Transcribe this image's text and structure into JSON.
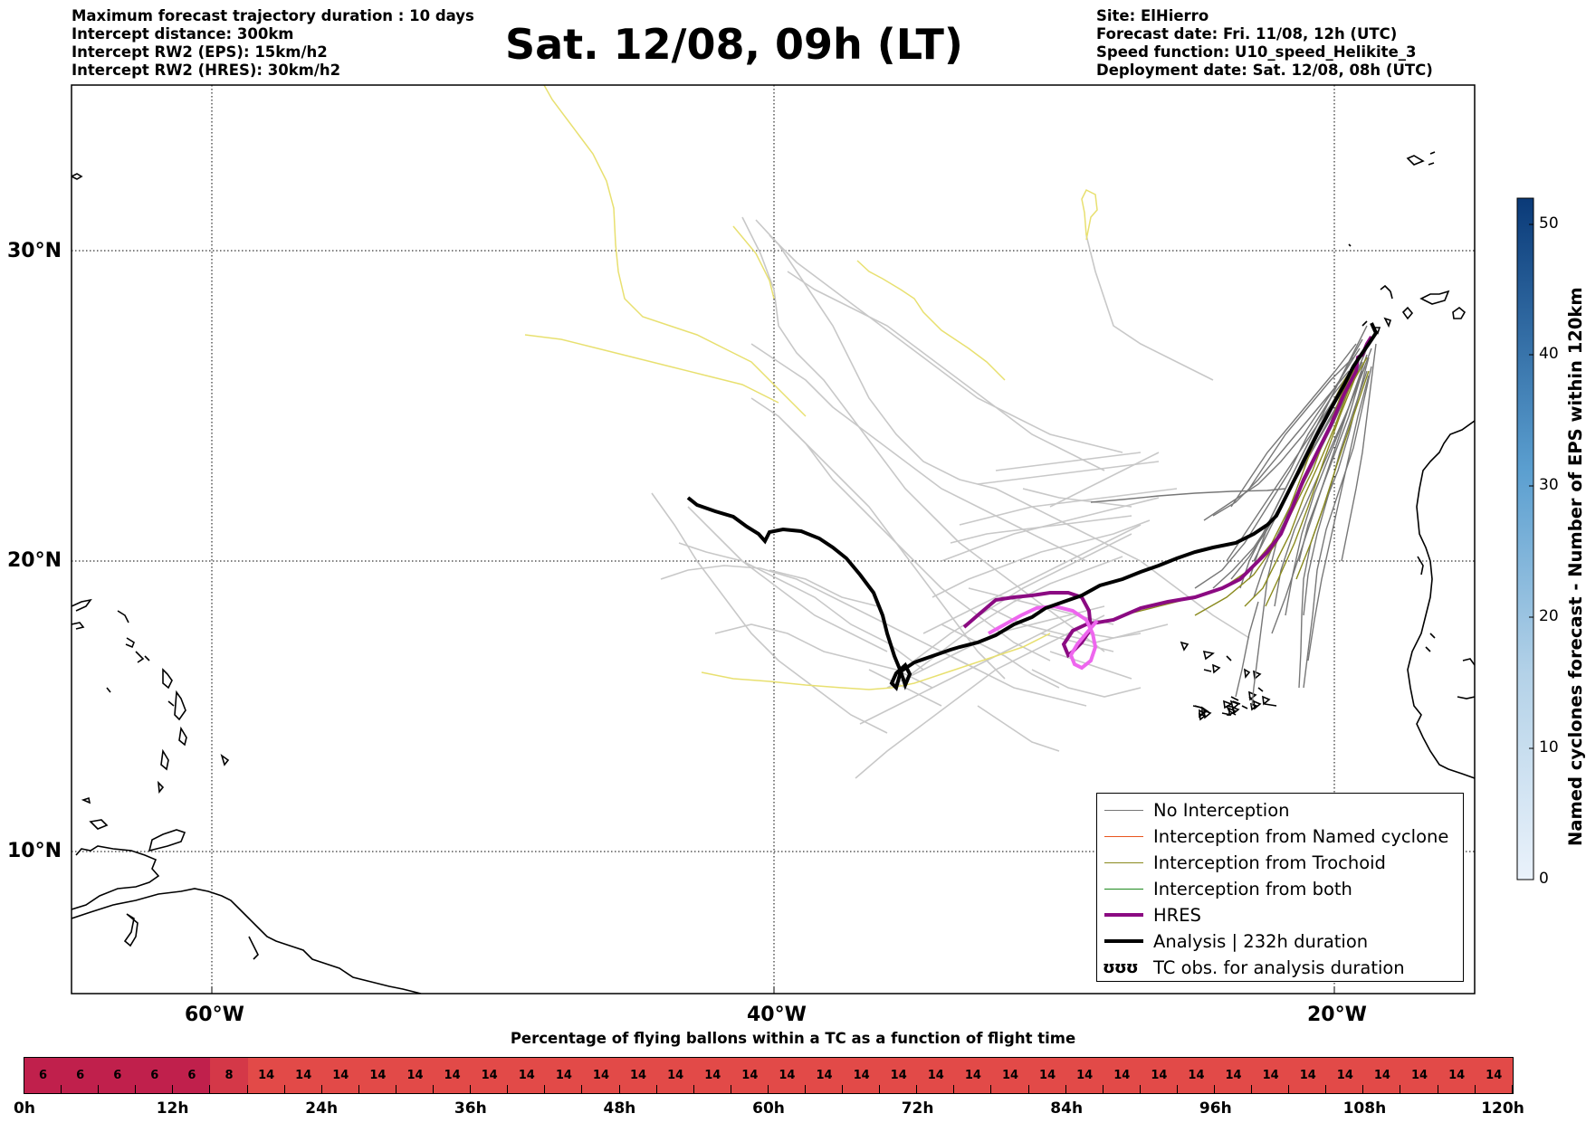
{
  "header": {
    "left": [
      "Maximum forecast trajectory duration : 10 days",
      "Intercept distance: 300km",
      "Intercept RW2 (EPS):  15km/h2",
      "Intercept RW2 (HRES): 30km/h2"
    ],
    "title": "Sat. 12/08, 09h (LT)",
    "right": [
      "Site: ElHierro",
      "Forecast date: Fri. 11/08, 12h (UTC)",
      "Speed function: U10_speed_Helikite_3",
      "Deployment date: Sat. 12/08, 08h (UTC)"
    ]
  },
  "map": {
    "lat_labels": [
      "30°N",
      "20°N",
      "10°N"
    ],
    "lon_labels": [
      "60°W",
      "40°W",
      "20°W"
    ],
    "colors": {
      "no_interception": "#777777",
      "named_cyclone": "#e8551e",
      "trochoid": "#8a8a1e",
      "both": "#1e8a1e",
      "hres": "#8b0a82",
      "analysis": "#000000",
      "eps_light": "#c8c8c8",
      "yellow": "#e8e070",
      "pink": "#ee66ee"
    }
  },
  "legend": {
    "items": [
      {
        "label": "No Interception"
      },
      {
        "label": "Interception from Named cyclone"
      },
      {
        "label": "Interception from Trochoid"
      },
      {
        "label": "Interception from both"
      },
      {
        "label": "HRES"
      },
      {
        "label": "Analysis | 232h duration"
      },
      {
        "label": "TC obs. for analysis duration",
        "symbol": "ʊʊʊ"
      }
    ]
  },
  "colorbar": {
    "label": "Named cyclones forecast - Number of EPS within 120km",
    "ticks": [
      "0",
      "10",
      "20",
      "30",
      "40",
      "50"
    ],
    "min": 0,
    "max": 52
  },
  "timebar": {
    "title": "Percentage of flying ballons within a TC as a function of flight time",
    "values": [
      6,
      6,
      6,
      6,
      6,
      8,
      14,
      14,
      14,
      14,
      14,
      14,
      14,
      14,
      14,
      14,
      14,
      14,
      14,
      14,
      14,
      14,
      14,
      14,
      14,
      14,
      14,
      14,
      14,
      14,
      14,
      14,
      14,
      14,
      14,
      14,
      14,
      14,
      14,
      14
    ],
    "ticks": [
      "0h",
      "12h",
      "24h",
      "36h",
      "48h",
      "60h",
      "72h",
      "84h",
      "96h",
      "108h",
      "120h"
    ],
    "colors": {
      "low": "#c0204c",
      "mid": "#d43848",
      "high": "#e24a48"
    }
  }
}
